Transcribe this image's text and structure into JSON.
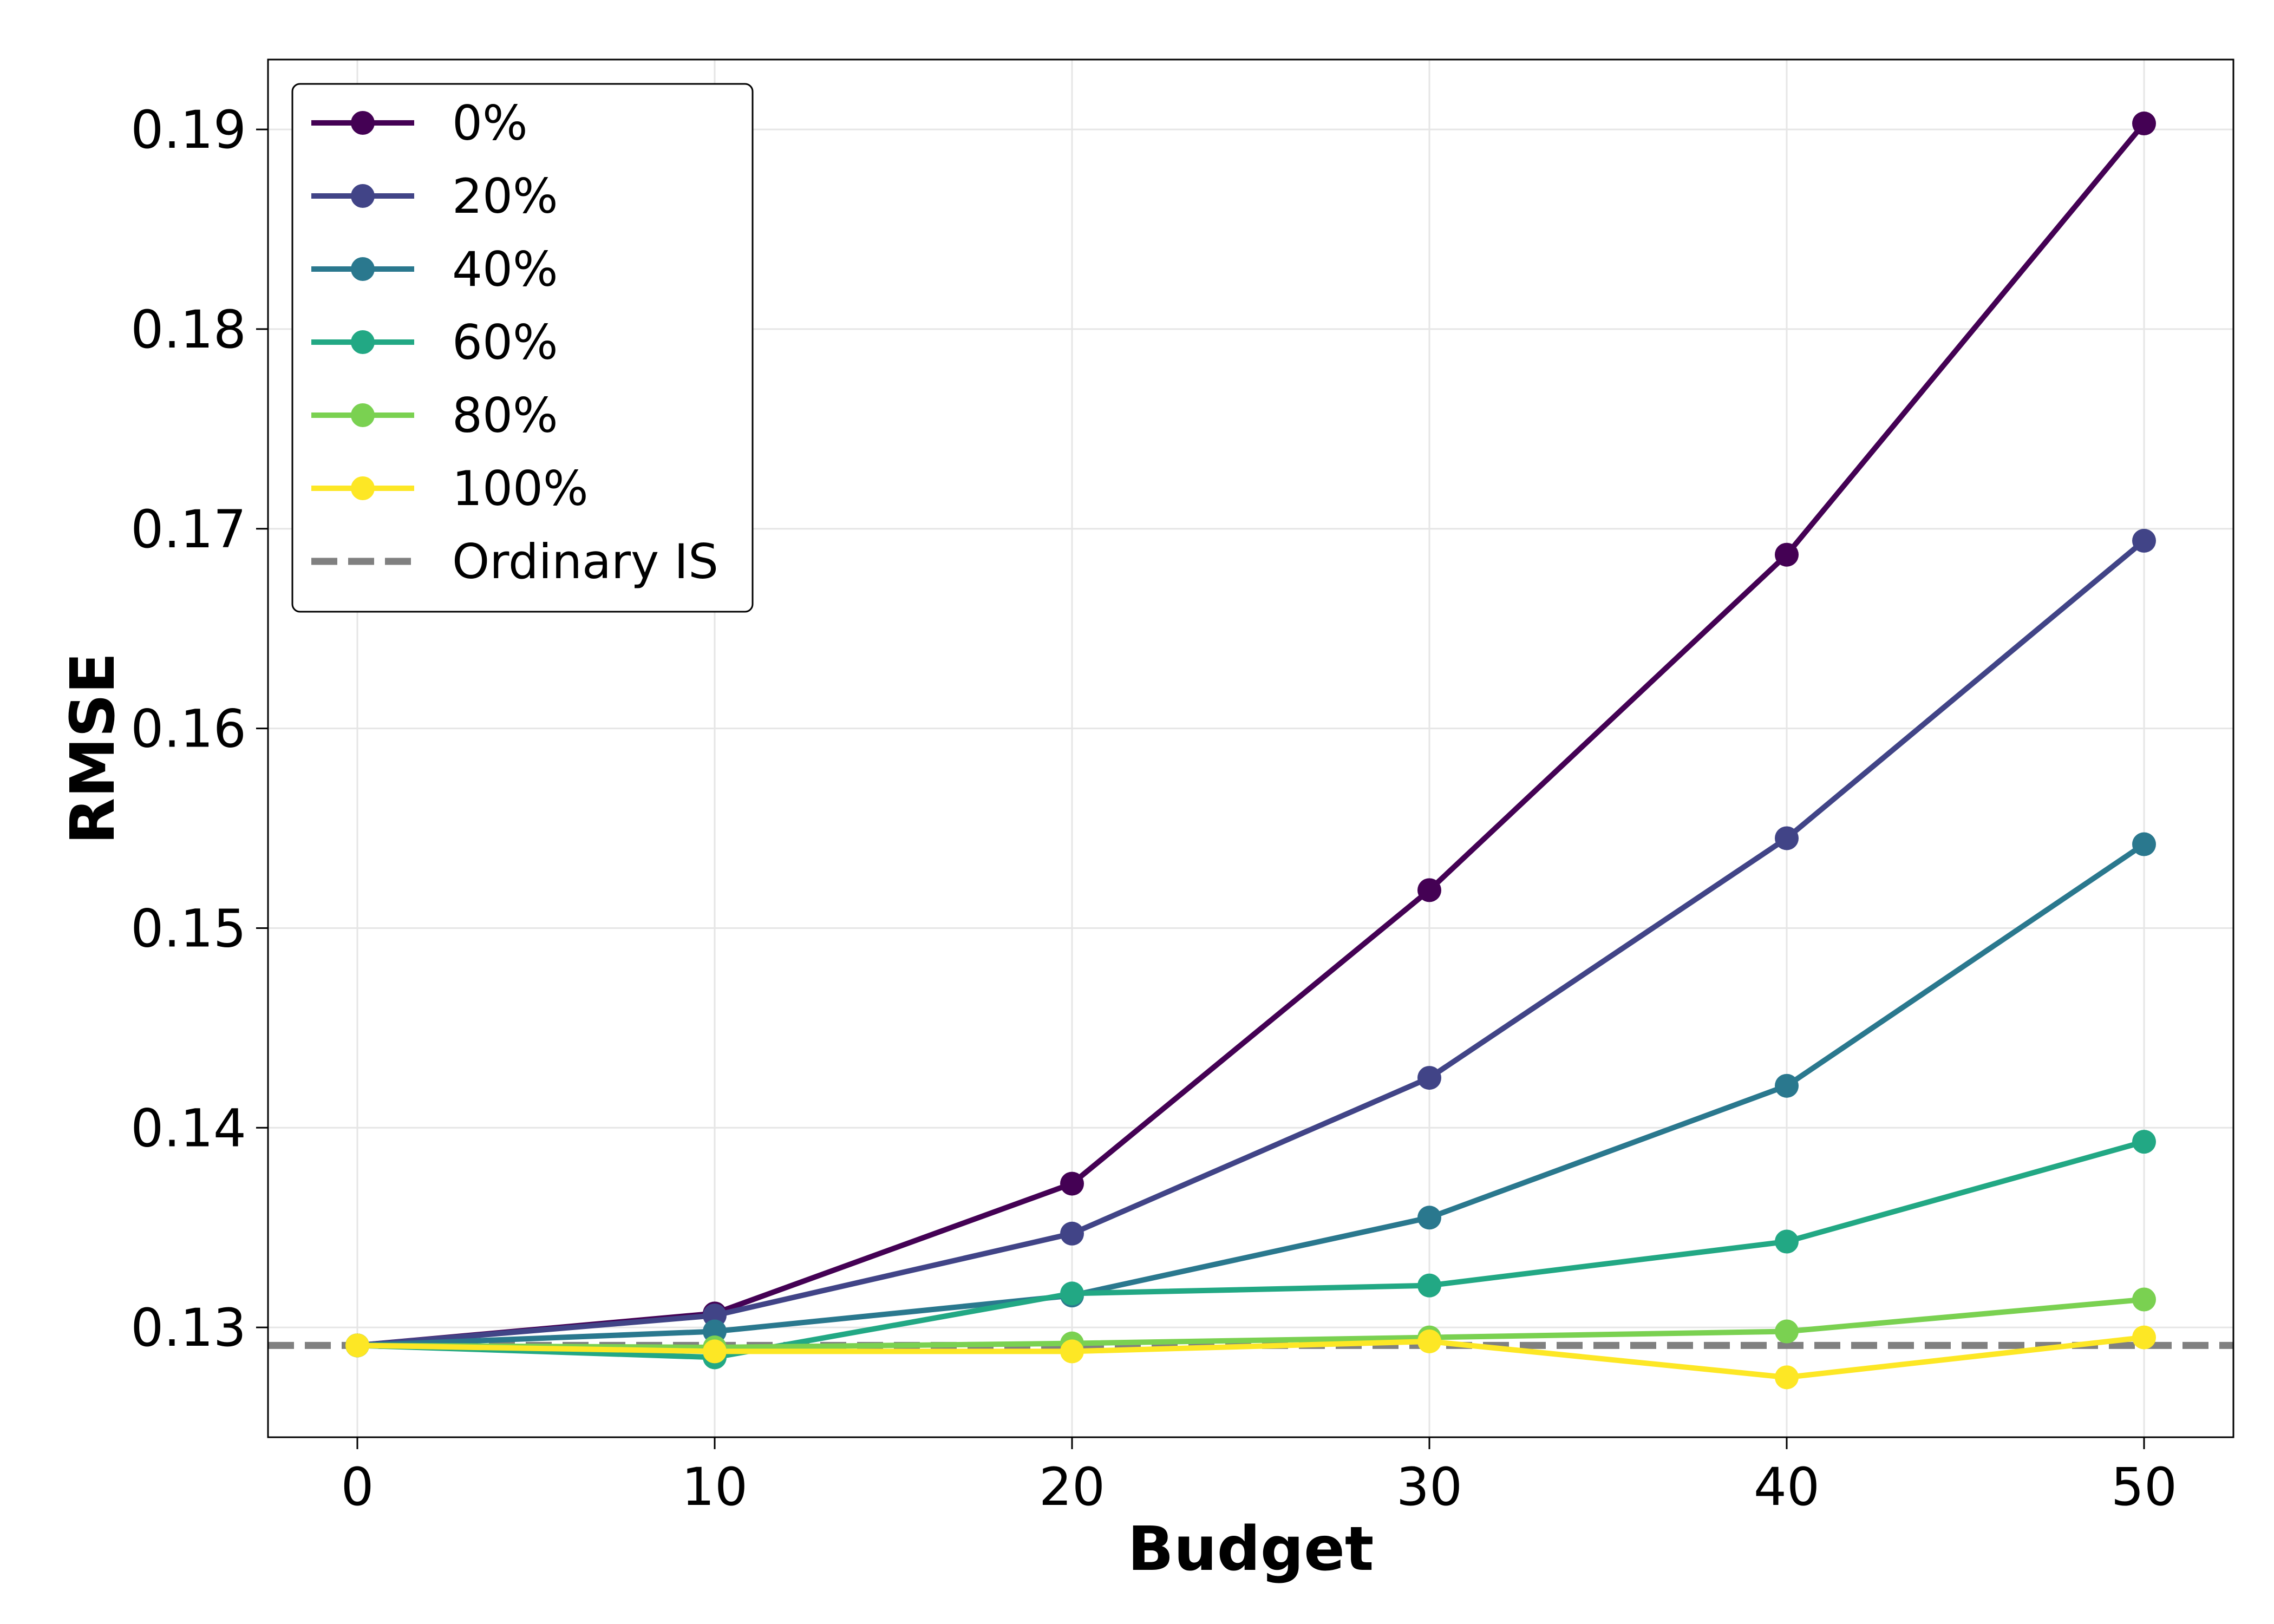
{
  "chart_data": {
    "type": "line",
    "title": "",
    "xlabel": "Budget",
    "ylabel": "RMSE",
    "x": [
      0,
      10,
      20,
      30,
      40,
      50
    ],
    "xlim": [
      -2.5,
      52.5
    ],
    "ylim": [
      0.1245,
      0.1935
    ],
    "xticks": [
      0,
      10,
      20,
      30,
      40,
      50
    ],
    "xtick_labels": [
      "0",
      "10",
      "20",
      "30",
      "40",
      "50"
    ],
    "yticks": [
      0.13,
      0.14,
      0.15,
      0.16,
      0.17,
      0.18,
      0.19
    ],
    "ytick_labels": [
      "0.13",
      "0.14",
      "0.15",
      "0.16",
      "0.17",
      "0.18",
      "0.19"
    ],
    "grid": true,
    "legend_position": "top-left",
    "series": [
      {
        "name": "0%",
        "color": "#440154",
        "values": [
          0.1291,
          0.1307,
          0.1372,
          0.1519,
          0.1687,
          0.1903
        ]
      },
      {
        "name": "20%",
        "color": "#414487",
        "values": [
          0.1291,
          0.1306,
          0.1347,
          0.1425,
          0.1545,
          0.1694
        ]
      },
      {
        "name": "40%",
        "color": "#2a788e",
        "values": [
          0.1291,
          0.1298,
          0.1316,
          0.1355,
          0.1421,
          0.1542
        ]
      },
      {
        "name": "60%",
        "color": "#22a884",
        "values": [
          0.1291,
          0.1285,
          0.1317,
          0.1321,
          0.1343,
          0.1393
        ]
      },
      {
        "name": "80%",
        "color": "#7ad151",
        "values": [
          0.1291,
          0.129,
          0.1292,
          0.1295,
          0.1298,
          0.1314
        ]
      },
      {
        "name": "100%",
        "color": "#fde725",
        "values": [
          0.1291,
          0.1288,
          0.1288,
          0.1293,
          0.1275,
          0.1295
        ]
      }
    ],
    "reference_lines": [
      {
        "name": "Ordinary IS",
        "value": 0.1291,
        "color": "#808080",
        "style": "dashed"
      }
    ]
  }
}
